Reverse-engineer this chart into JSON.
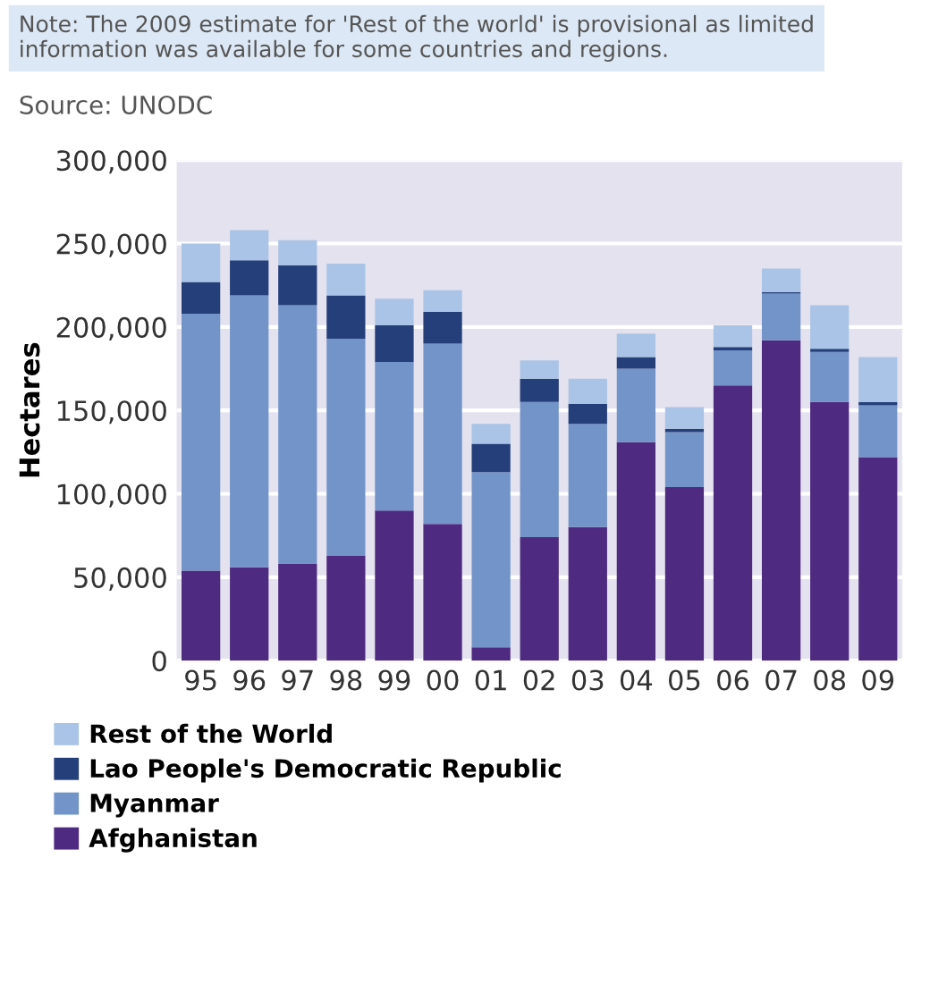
{
  "chart_data": {
    "type": "bar",
    "stacked": true,
    "ylabel": "Hectares",
    "annotations": [
      "Note: The 2009 estimate for 'Rest of the world' is provisional as limited information was available for some countries and regions.",
      "Source: UNODC"
    ],
    "categories": [
      "95",
      "96",
      "97",
      "98",
      "99",
      "00",
      "01",
      "02",
      "03",
      "04",
      "05",
      "06",
      "07",
      "08",
      "09"
    ],
    "series": [
      {
        "name": "Afghanistan",
        "color": "#4e2a80",
        "values": [
          54000,
          56000,
          58000,
          63000,
          90000,
          82000,
          8000,
          74000,
          80000,
          131000,
          104000,
          165000,
          192000,
          155000,
          122000
        ]
      },
      {
        "name": "Myanmar",
        "color": "#7394c9",
        "values": [
          154000,
          163000,
          155000,
          130000,
          89000,
          108000,
          105000,
          81000,
          62000,
          44000,
          33000,
          21000,
          28000,
          30000,
          31000
        ]
      },
      {
        "name": "Lao People's Democratic Republic",
        "color": "#243f7a",
        "values": [
          19000,
          21000,
          24000,
          26000,
          22000,
          19000,
          17000,
          14000,
          12000,
          7000,
          2000,
          2000,
          1000,
          2000,
          2000
        ]
      },
      {
        "name": "Rest of the World",
        "color": "#a9c4e6",
        "values": [
          23000,
          18000,
          15000,
          19000,
          16000,
          13000,
          12000,
          11000,
          15000,
          14000,
          13000,
          13000,
          14000,
          26000,
          27000
        ]
      }
    ],
    "ylim": [
      0,
      300000
    ],
    "yticks": [
      0,
      {
        "value": 50000,
        "label": "50,000"
      },
      {
        "value": 100000,
        "label": "100,000"
      },
      {
        "value": 150000,
        "label": "150,000"
      },
      {
        "value": 200000,
        "label": "200,000"
      },
      {
        "value": 250000,
        "label": "250,000"
      },
      {
        "value": 300000,
        "label": "300,000"
      }
    ],
    "grid": "y",
    "legend": "bottom"
  }
}
